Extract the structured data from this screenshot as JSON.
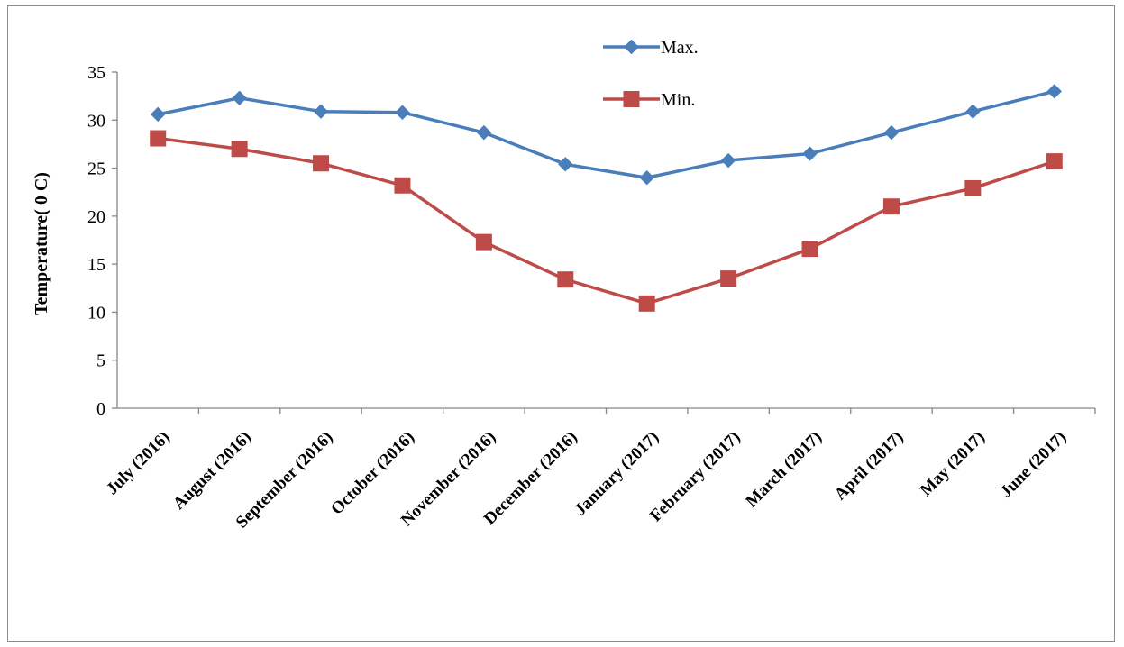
{
  "chart_data": {
    "type": "line",
    "title": "",
    "xlabel": "",
    "ylabel": "Temperature( 0 C)",
    "ylim": [
      0,
      35
    ],
    "yticks": [
      0,
      5,
      10,
      15,
      20,
      25,
      30,
      35
    ],
    "grid": false,
    "legend_position": "top-center",
    "categories": [
      "July (2016)",
      "August  (2016)",
      "September (2016)",
      "October (2016)",
      "November (2016)",
      "December (2016)",
      "January (2017)",
      "February (2017)",
      "March (2017)",
      "April (2017)",
      "May (2017)",
      "June (2017)"
    ],
    "series": [
      {
        "name": "Max.",
        "color": "#4a7ebb",
        "marker": "diamond",
        "values": [
          30.6,
          32.3,
          30.9,
          30.8,
          28.7,
          25.4,
          24.0,
          25.8,
          26.5,
          28.7,
          30.9,
          33.0
        ]
      },
      {
        "name": "Min.",
        "color": "#be4b48",
        "marker": "square",
        "values": [
          28.1,
          27.0,
          25.5,
          23.2,
          17.3,
          13.4,
          10.9,
          13.5,
          16.6,
          21.0,
          22.9,
          25.7
        ]
      }
    ]
  }
}
